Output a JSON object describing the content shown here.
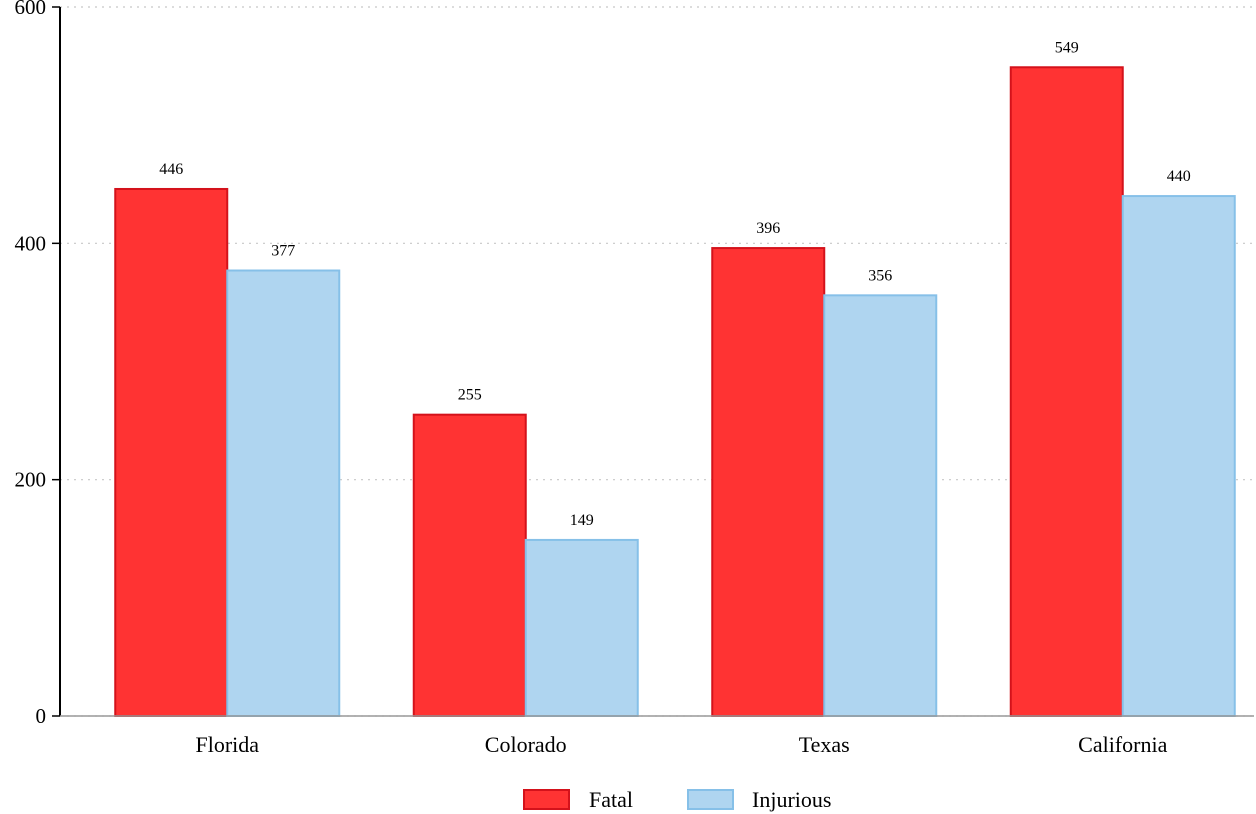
{
  "chart_data": {
    "type": "bar",
    "categories": [
      "Florida",
      "Colorado",
      "Texas",
      "California"
    ],
    "series": [
      {
        "name": "Fatal",
        "values": [
          446,
          255,
          396,
          549
        ],
        "color": "#ff3333",
        "stroke": "#d4121b"
      },
      {
        "name": "Injurious",
        "values": [
          377,
          149,
          356,
          440
        ],
        "color": "#afd5f0",
        "stroke": "#86c0e8"
      }
    ],
    "ylim": [
      0,
      600
    ],
    "yticks": [
      0,
      200,
      400,
      600
    ],
    "grid": true,
    "legend": "bottom-center",
    "title": "",
    "xlabel": "",
    "ylabel": ""
  }
}
